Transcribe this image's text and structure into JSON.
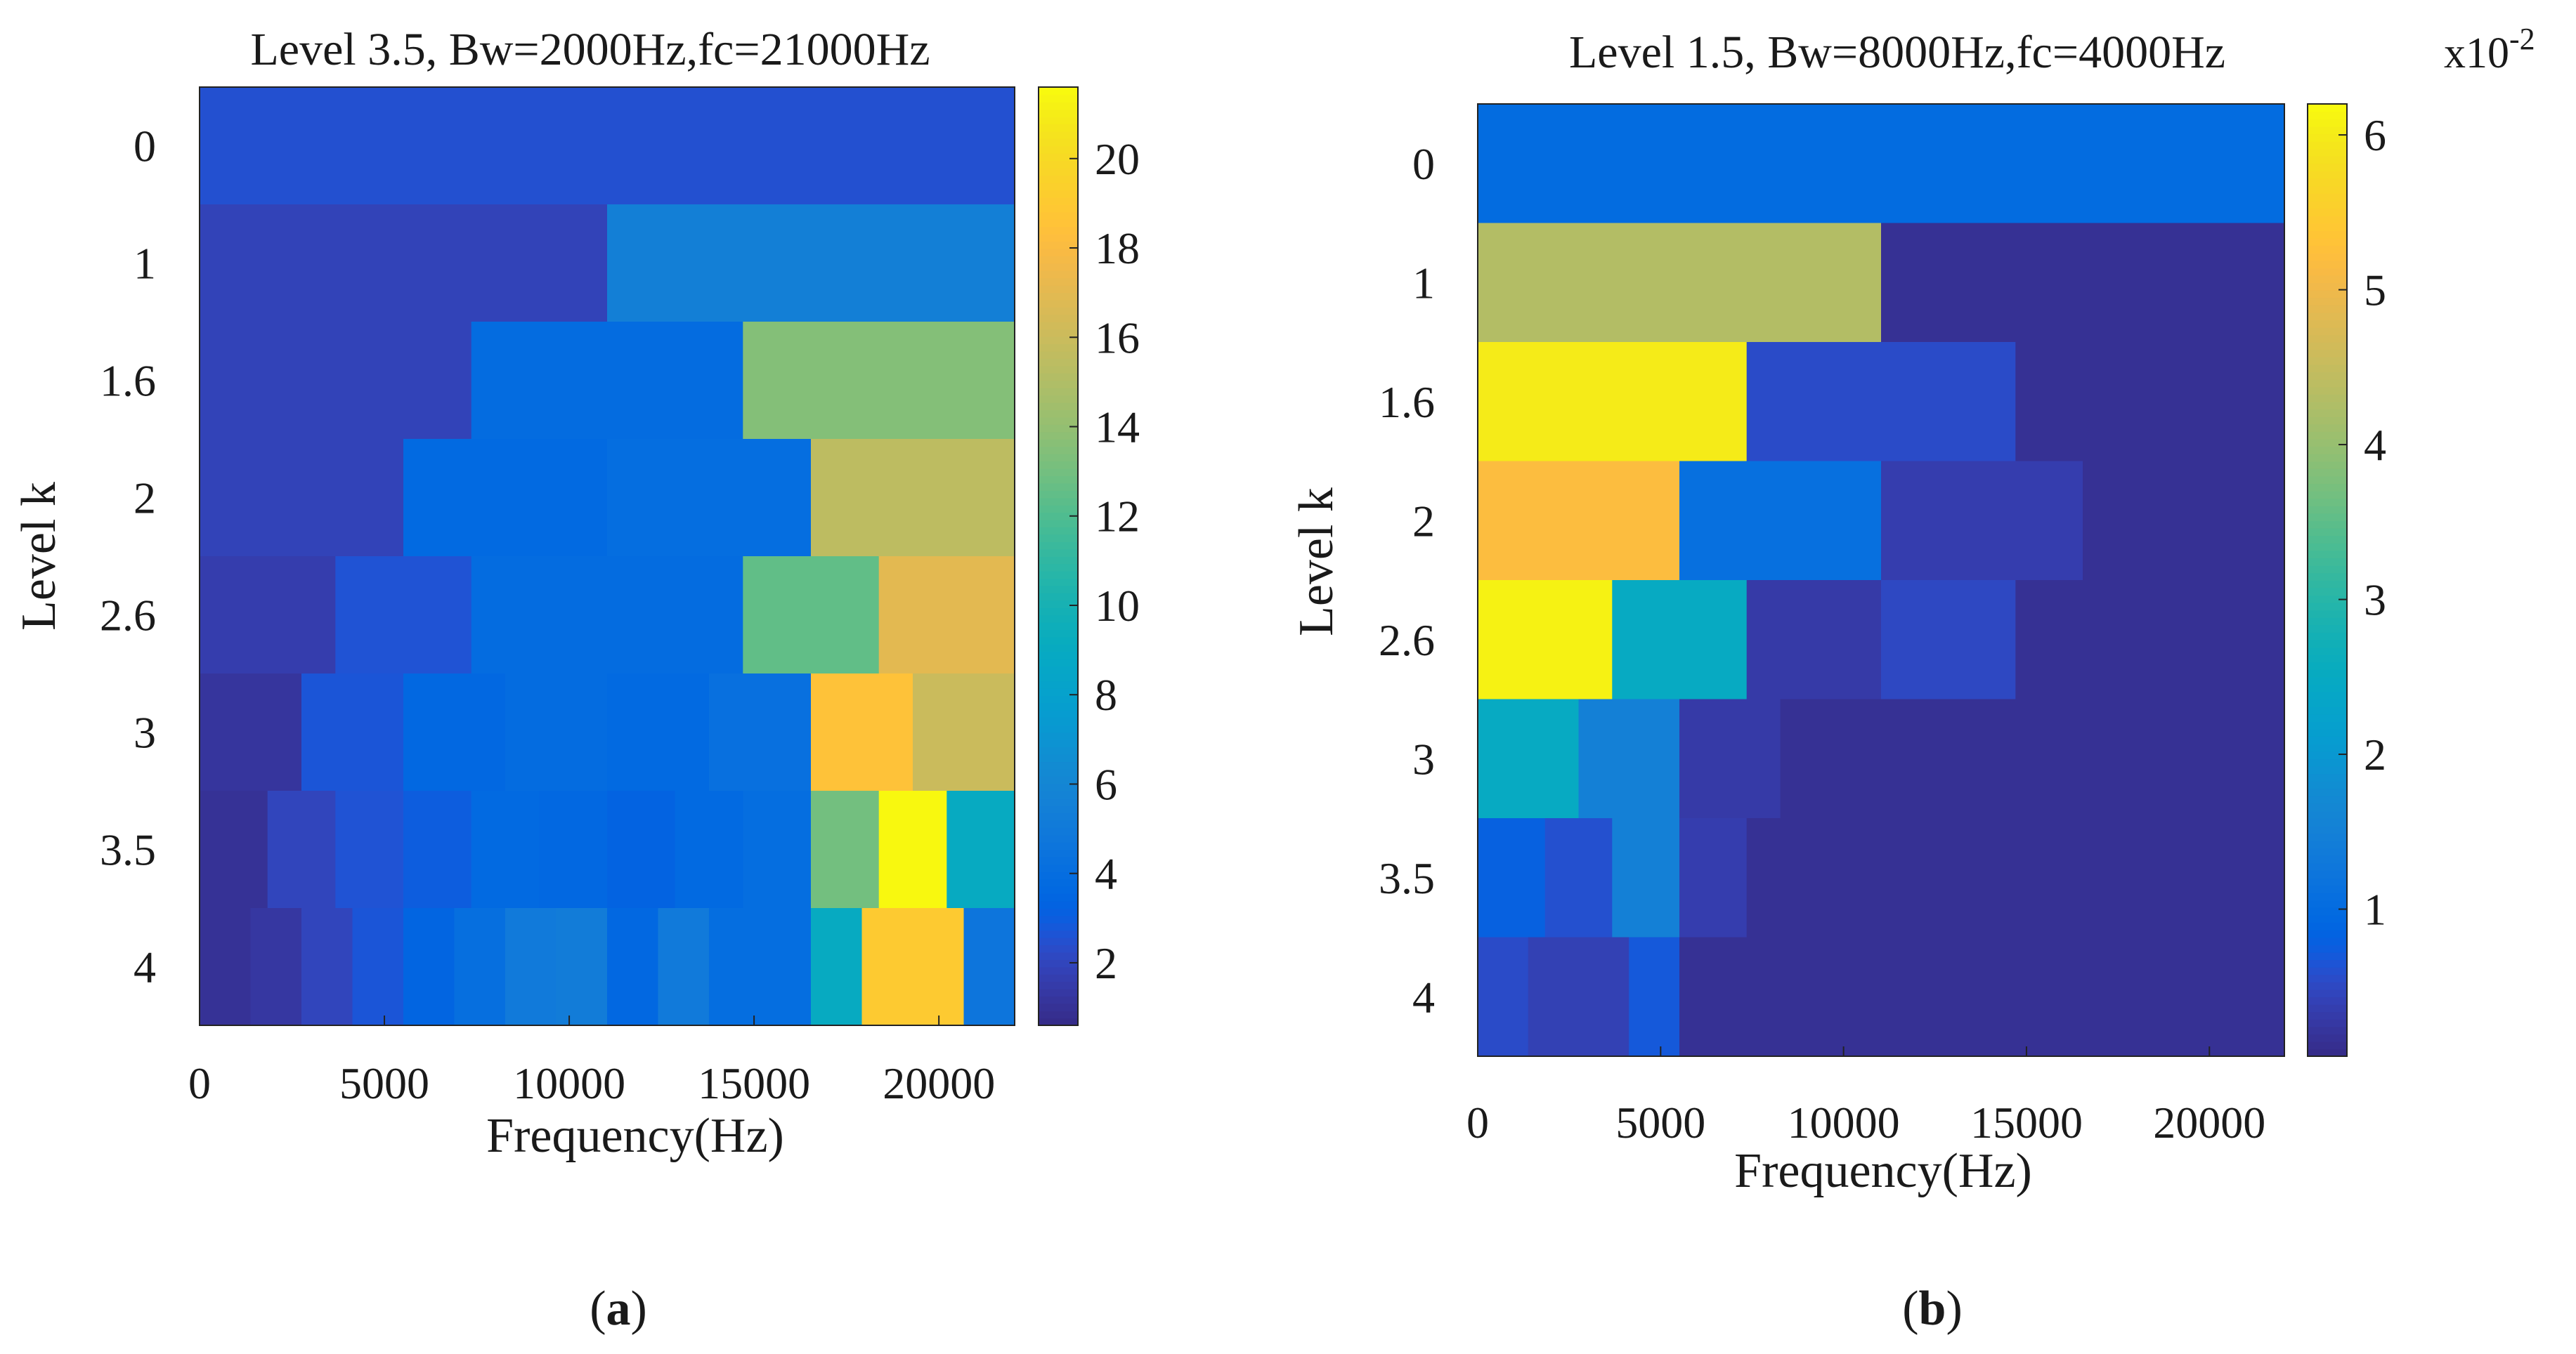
{
  "chart_data": [
    {
      "id": "a",
      "type": "heatmap",
      "title": "Level 3.5, Bw=2000Hz,fc=21000Hz",
      "xlabel": "Frequency(Hz)",
      "ylabel": "Level k",
      "xlim": [
        0,
        22050
      ],
      "xticks": [
        0,
        5000,
        10000,
        15000,
        20000
      ],
      "xtick_labels": [
        "0",
        "5000",
        "10000",
        "15000",
        "20000"
      ],
      "rows": [
        "0",
        "1",
        "1.6",
        "2",
        "2.6",
        "3",
        "3.5",
        "4"
      ],
      "cells": [
        [
          [
            0,
            22050,
            2.5
          ]
        ],
        [
          [
            0,
            11025,
            1.9
          ],
          [
            11025,
            22050,
            5.5
          ]
        ],
        [
          [
            0,
            7350,
            1.9
          ],
          [
            7350,
            14700,
            3.9
          ],
          [
            14700,
            22050,
            13.5
          ]
        ],
        [
          [
            0,
            5512.5,
            1.9
          ],
          [
            5512.5,
            11025,
            3.7
          ],
          [
            11025,
            16537.5,
            4.0
          ],
          [
            16537.5,
            22050,
            15.5
          ]
        ],
        [
          [
            0,
            3675,
            1.6
          ],
          [
            3675,
            7350,
            2.6
          ],
          [
            7350,
            14700,
            3.9
          ],
          [
            14700,
            18375,
            12.5
          ],
          [
            18375,
            22050,
            17.0
          ]
        ],
        [
          [
            0,
            2756,
            1.2
          ],
          [
            2756,
            5512.5,
            2.7
          ],
          [
            5512.5,
            8269,
            3.6
          ],
          [
            8269,
            11025,
            3.9
          ],
          [
            11025,
            13781,
            3.7
          ],
          [
            13781,
            16537.5,
            4.2
          ],
          [
            16537.5,
            19294,
            18.5
          ],
          [
            19294,
            22050,
            16.0
          ]
        ],
        [
          [
            0,
            1837.5,
            1.0
          ],
          [
            1837.5,
            3675,
            2.0
          ],
          [
            3675,
            5512.5,
            2.6
          ],
          [
            5512.5,
            7350,
            3.0
          ],
          [
            7350,
            9187.5,
            3.7
          ],
          [
            9187.5,
            11025,
            3.6
          ],
          [
            11025,
            12862.5,
            3.3
          ],
          [
            12862.5,
            14700,
            3.7
          ],
          [
            14700,
            16537.5,
            4.0
          ],
          [
            16537.5,
            18375,
            13.0
          ],
          [
            18375,
            20212.5,
            21.5
          ],
          [
            20212.5,
            22050,
            9.0
          ]
        ],
        [
          [
            0,
            1378,
            1.0
          ],
          [
            1378,
            2756,
            1.3
          ],
          [
            2756,
            4134,
            2.0
          ],
          [
            4134,
            5512.5,
            2.7
          ],
          [
            5512.5,
            6891,
            3.4
          ],
          [
            6891,
            8269,
            4.1
          ],
          [
            8269,
            9647,
            5.0
          ],
          [
            9647,
            11025,
            5.2
          ],
          [
            11025,
            12403,
            3.6
          ],
          [
            12403,
            13781,
            5.0
          ],
          [
            13781,
            15159,
            4.0
          ],
          [
            15159,
            16537.5,
            4.0
          ],
          [
            16537.5,
            17916,
            9.0
          ],
          [
            17916,
            20672,
            19.0
          ],
          [
            20672,
            22050,
            4.6
          ]
        ]
      ],
      "colorbar": {
        "min": 0.6,
        "max": 21.6,
        "ticks": [
          2,
          4,
          6,
          8,
          10,
          12,
          14,
          16,
          18,
          20
        ],
        "tick_labels": [
          "2",
          "4",
          "6",
          "8",
          "10",
          "12",
          "14",
          "16",
          "18",
          "20"
        ],
        "exponent": ""
      },
      "caption": "a"
    },
    {
      "id": "b",
      "type": "heatmap",
      "title": "Level 1.5, Bw=8000Hz,fc=4000Hz",
      "xlabel": "Frequency(Hz)",
      "ylabel": "Level k",
      "xlim": [
        0,
        22050
      ],
      "xticks": [
        0,
        5000,
        10000,
        15000,
        20000
      ],
      "xtick_labels": [
        "0",
        "5000",
        "10000",
        "15000",
        "20000"
      ],
      "rows": [
        "0",
        "1",
        "1.6",
        "2",
        "2.6",
        "3",
        "3.5",
        "4"
      ],
      "cells": [
        [
          [
            0,
            22050,
            1.0
          ]
        ],
        [
          [
            0,
            11025,
            4.3
          ],
          [
            11025,
            22050,
            0.15
          ]
        ],
        [
          [
            0,
            7350,
            6.0
          ],
          [
            7350,
            14700,
            0.55
          ],
          [
            14700,
            22050,
            0.15
          ]
        ],
        [
          [
            0,
            5512.5,
            5.2
          ],
          [
            5512.5,
            11025,
            1.1
          ],
          [
            11025,
            16537.5,
            0.35
          ],
          [
            16537.5,
            22050,
            0.15
          ]
        ],
        [
          [
            0,
            3675,
            6.1
          ],
          [
            3675,
            7350,
            2.5
          ],
          [
            7350,
            11025,
            0.3
          ],
          [
            11025,
            14700,
            0.5
          ],
          [
            14700,
            22050,
            0.15
          ]
        ],
        [
          [
            0,
            2756,
            2.5
          ],
          [
            2756,
            5512.5,
            1.5
          ],
          [
            5512.5,
            8269,
            0.3
          ],
          [
            8269,
            22050,
            0.15
          ]
        ],
        [
          [
            0,
            1837.5,
            0.8
          ],
          [
            1837.5,
            3675,
            0.6
          ],
          [
            3675,
            5512.5,
            1.5
          ],
          [
            5512.5,
            7350,
            0.35
          ],
          [
            7350,
            22050,
            0.15
          ]
        ],
        [
          [
            0,
            1378,
            0.55
          ],
          [
            1378,
            4134,
            0.4
          ],
          [
            4134,
            5512.5,
            0.7
          ],
          [
            5512.5,
            22050,
            0.15
          ]
        ]
      ],
      "colorbar": {
        "min": 0.05,
        "max": 6.2,
        "ticks": [
          1,
          2,
          3,
          4,
          5,
          6
        ],
        "tick_labels": [
          "1",
          "2",
          "3",
          "4",
          "5",
          "6"
        ],
        "exponent": "x10",
        "exponent_power": "-2"
      },
      "caption": "b"
    }
  ],
  "captions": {
    "open": "(",
    "close": ")"
  }
}
